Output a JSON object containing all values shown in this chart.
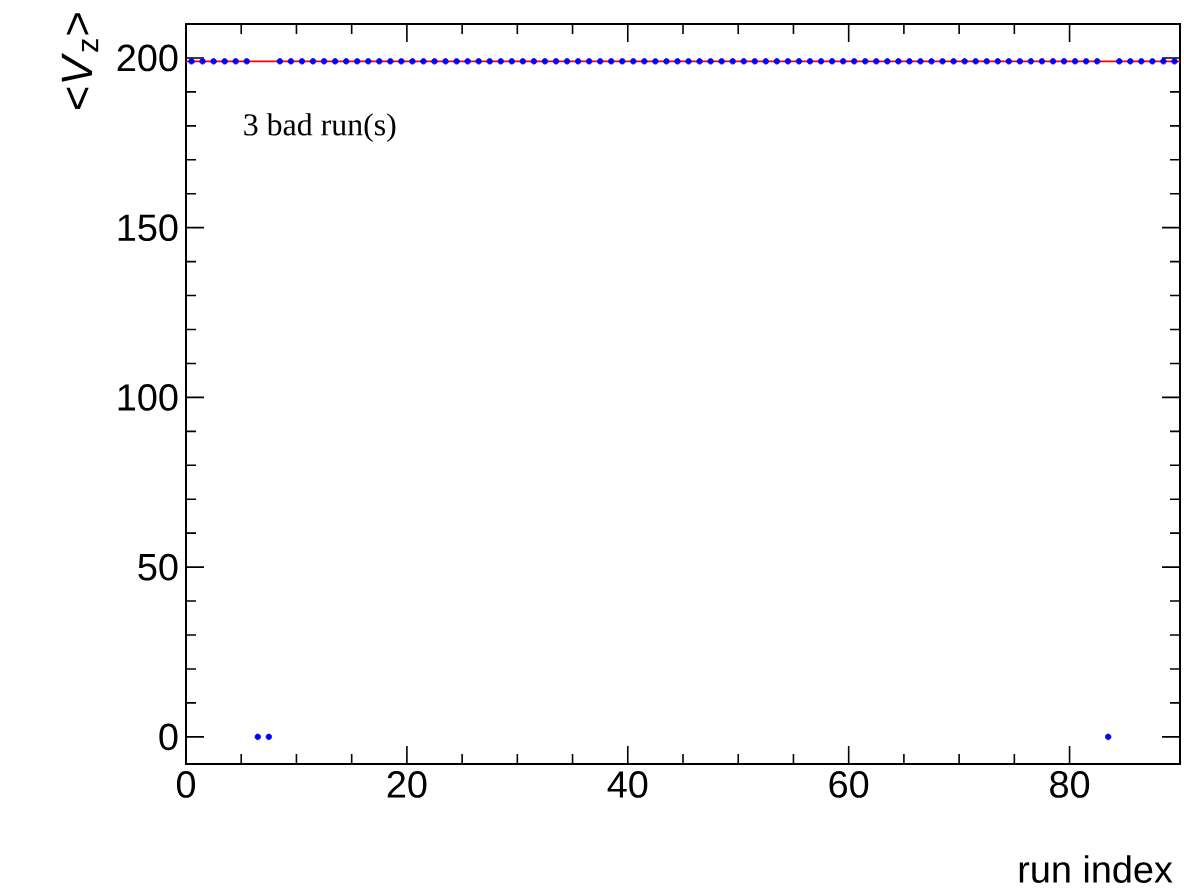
{
  "chart_data": {
    "type": "scatter",
    "xlabel": "run index",
    "ylabel": "<*V*$_{z}$>",
    "annotations": [
      "3 bad run(s)"
    ],
    "x": [
      0.5,
      1.5,
      2.5,
      3.5,
      4.5,
      5.5,
      6.5,
      7.5,
      8.5,
      9.5,
      10.5,
      11.5,
      12.5,
      13.5,
      14.5,
      15.5,
      16.5,
      17.5,
      18.5,
      19.5,
      20.5,
      21.5,
      22.5,
      23.5,
      24.5,
      25.5,
      26.5,
      27.5,
      28.5,
      29.5,
      30.5,
      31.5,
      32.5,
      33.5,
      34.5,
      35.5,
      36.5,
      37.5,
      38.5,
      39.5,
      40.5,
      41.5,
      42.5,
      43.5,
      44.5,
      45.5,
      46.5,
      47.5,
      48.5,
      49.5,
      50.5,
      51.5,
      52.5,
      53.5,
      54.5,
      55.5,
      56.5,
      57.5,
      58.5,
      59.5,
      60.5,
      61.5,
      62.5,
      63.5,
      64.5,
      65.5,
      66.5,
      67.5,
      68.5,
      69.5,
      70.5,
      71.5,
      72.5,
      73.5,
      74.5,
      75.5,
      76.5,
      77.5,
      78.5,
      79.5,
      80.5,
      81.5,
      82.5,
      83.5,
      84.5,
      85.5,
      86.5,
      87.5,
      88.5,
      89.5
    ],
    "values": [
      199,
      199,
      199,
      199,
      199,
      199,
      0,
      0,
      199,
      199,
      199,
      199,
      199,
      199,
      199,
      199,
      199,
      199,
      199,
      199,
      199,
      199,
      199,
      199,
      199,
      199,
      199,
      199,
      199,
      199,
      199,
      199,
      199,
      199,
      199,
      199,
      199,
      199,
      199,
      199,
      199,
      199,
      199,
      199,
      199,
      199,
      199,
      199,
      199,
      199,
      199,
      199,
      199,
      199,
      199,
      199,
      199,
      199,
      199,
      199,
      199,
      199,
      199,
      199,
      199,
      199,
      199,
      199,
      199,
      199,
      199,
      199,
      199,
      199,
      199,
      199,
      199,
      199,
      199,
      199,
      199,
      199,
      199,
      0,
      199,
      199,
      199,
      199,
      199,
      199
    ],
    "color": "#0000ff",
    "ref_lines": [
      {
        "axis": "y",
        "value": 199,
        "color": "#ff0000"
      }
    ],
    "xlim": [
      0,
      90
    ],
    "ylim": [
      -8,
      210
    ],
    "xticks": [
      0,
      20,
      40,
      60,
      80
    ],
    "yticks": [
      0,
      50,
      100,
      150,
      200
    ],
    "grid": false
  }
}
